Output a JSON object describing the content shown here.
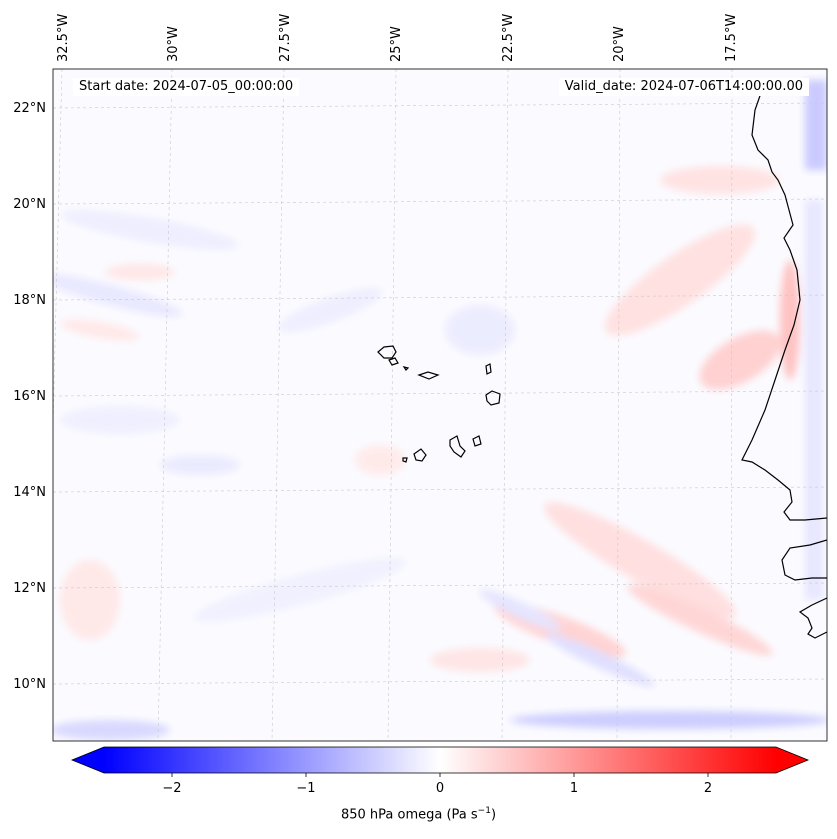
{
  "header": {
    "start_date": "Start date: 2024-07-05_00:00:00",
    "valid_date": "Valid_date: 2024-07-06T14:00:00.00"
  },
  "map": {
    "lon_labels": [
      "32.5°W",
      "30°W",
      "27.5°W",
      "25°W",
      "22.5°W",
      "20°W",
      "17.5°W"
    ],
    "lat_labels": [
      "22°N",
      "20°N",
      "18°N",
      "16°N",
      "14°N",
      "12°N",
      "10°N"
    ]
  },
  "colorbar": {
    "ticks": [
      "−2",
      "−1",
      "0",
      "1",
      "2"
    ],
    "label": "850 hPa omega (Pa s",
    "label_sup": "−1",
    "label_end": ")",
    "min": -2.5,
    "max": 2.5,
    "colors": {
      "low": "#0000ff",
      "mid": "#ffffff",
      "high": "#ff0000"
    }
  }
}
